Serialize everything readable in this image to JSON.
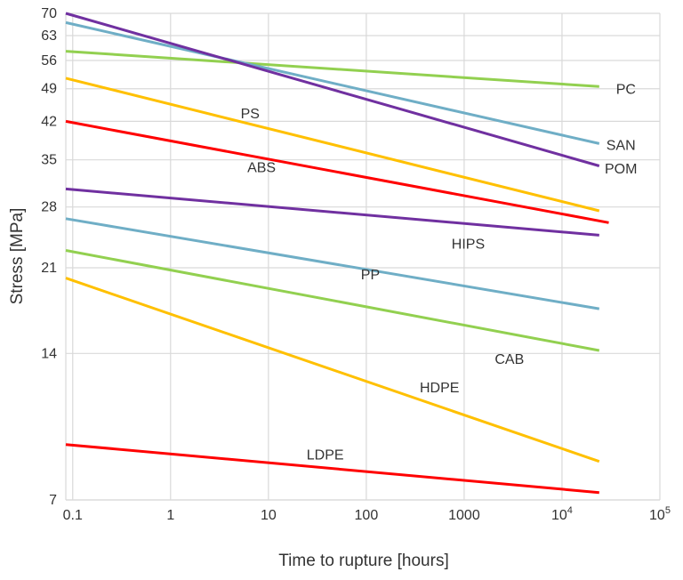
{
  "chart_data": {
    "type": "line",
    "title": "",
    "xlabel": "Time to rupture [hours]",
    "ylabel": "Stress [MPa]",
    "x_scale": "log",
    "y_scale": "log",
    "xlim": [
      0.085,
      100000
    ],
    "ylim": [
      7,
      70
    ],
    "grid": true,
    "x_ticks": [
      {
        "value": 0.1,
        "label": "0.1"
      },
      {
        "value": 1,
        "label": "1"
      },
      {
        "value": 10,
        "label": "10"
      },
      {
        "value": 100,
        "label": "100"
      },
      {
        "value": 1000,
        "label": "1000"
      },
      {
        "value": 10000,
        "label": "10",
        "sup": "4"
      },
      {
        "value": 100000,
        "label": "10",
        "sup": "5"
      }
    ],
    "y_ticks": [
      7,
      14,
      21,
      28,
      35,
      42,
      49,
      56,
      63,
      70
    ],
    "series": [
      {
        "name": "PC",
        "color": "#92D050",
        "x": [
          0.085,
          24000
        ],
        "values": [
          58.5,
          49.5
        ],
        "label_x": 45000,
        "label_y": 48.8
      },
      {
        "name": "SAN",
        "color": "#6FAEC6",
        "x": [
          0.085,
          24000
        ],
        "values": [
          67,
          37.8
        ],
        "label_x": 40000,
        "label_y": 37.5
      },
      {
        "name": "POM",
        "color": "#7030A0",
        "x": [
          0.085,
          24000
        ],
        "values": [
          70,
          34
        ],
        "label_x": 40000,
        "label_y": 33.5
      },
      {
        "name": "PS",
        "color": "#FFC000",
        "x": [
          0.085,
          24000
        ],
        "values": [
          51.5,
          27.5
        ],
        "label_x": 6.5,
        "label_y": 43.5
      },
      {
        "name": "ABS",
        "color": "#FF0000",
        "x": [
          0.085,
          30000
        ],
        "values": [
          42,
          26
        ],
        "label_x": 8.5,
        "label_y": 33.7
      },
      {
        "name": "HIPS",
        "color": "#7030A0",
        "x": [
          0.085,
          24000
        ],
        "values": [
          30.5,
          24.5
        ],
        "label_x": 1100,
        "label_y": 23.5
      },
      {
        "name": "PP",
        "color": "#6FAEC6",
        "x": [
          0.085,
          24000
        ],
        "values": [
          26.5,
          17.3
        ],
        "label_x": 110,
        "label_y": 20.3
      },
      {
        "name": "CAB",
        "color": "#92D050",
        "x": [
          0.085,
          24000
        ],
        "values": [
          22.8,
          14.2
        ],
        "label_x": 2900,
        "label_y": 13.6
      },
      {
        "name": "HDPE",
        "color": "#FFC000",
        "x": [
          0.085,
          24000
        ],
        "values": [
          20,
          8.4
        ],
        "label_x": 560,
        "label_y": 11.9
      },
      {
        "name": "LDPE",
        "color": "#FF0000",
        "x": [
          0.085,
          24000
        ],
        "values": [
          9.1,
          7.25
        ],
        "label_x": 38,
        "label_y": 8.65
      }
    ]
  }
}
